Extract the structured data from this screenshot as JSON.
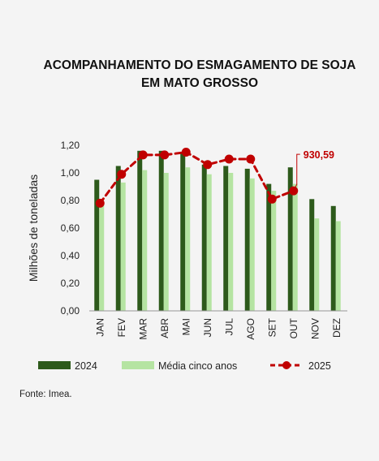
{
  "title": "ACOMPANHAMENTO DO ESMAGAMENTO DE SOJA EM MATO GROSSO",
  "source": "Fonte: Imea.",
  "colors": {
    "s2024": "#2d5a1b",
    "media": "#b5e4a2",
    "s2025": "#c00000",
    "axis": "#999999"
  },
  "chart_data": {
    "type": "bar",
    "categories": [
      "JAN",
      "FEV",
      "MAR",
      "ABR",
      "MAI",
      "JUN",
      "JUL",
      "AGO",
      "SET",
      "OUT",
      "NOV",
      "DEZ"
    ],
    "ylabel": "Milhões de toneladas",
    "ylim": [
      0,
      1.2
    ],
    "yticks": [
      "0,00",
      "0,20",
      "0,40",
      "0,60",
      "0,80",
      "1,00",
      "1,20"
    ],
    "grid": false,
    "legend": "bottom",
    "series": [
      {
        "name": "2024",
        "type": "bar",
        "values": [
          0.95,
          1.05,
          1.16,
          1.16,
          1.15,
          1.06,
          1.05,
          1.03,
          0.92,
          1.04,
          0.81,
          0.76
        ]
      },
      {
        "name": "Média cinco anos",
        "type": "bar",
        "values": [
          0.8,
          0.93,
          1.02,
          1.0,
          1.04,
          0.99,
          1.0,
          0.96,
          0.87,
          0.92,
          0.67,
          0.65
        ]
      },
      {
        "name": "2025",
        "type": "line",
        "style": "dashed",
        "values": [
          0.78,
          0.99,
          1.13,
          1.13,
          1.15,
          1.06,
          1.1,
          1.1,
          0.81,
          0.87,
          null,
          null
        ]
      }
    ],
    "annotation": {
      "category": "OUT",
      "text": "930,59"
    }
  }
}
